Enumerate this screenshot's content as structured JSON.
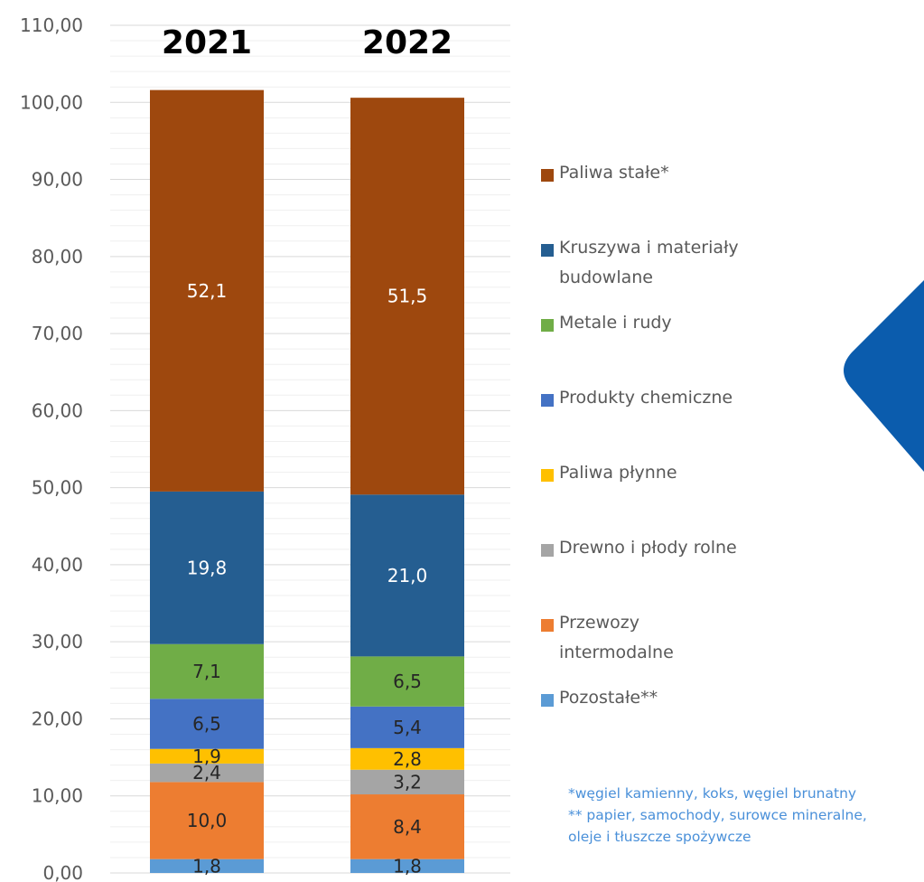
{
  "chart_data": {
    "type": "bar",
    "stacked": true,
    "categories": [
      "2021",
      "2022"
    ],
    "ylim": [
      0,
      110
    ],
    "yticks": [
      "0,00",
      "10,00",
      "20,00",
      "30,00",
      "40,00",
      "50,00",
      "60,00",
      "70,00",
      "80,00",
      "90,00",
      "100,00",
      "110,00"
    ],
    "grid": true,
    "series": [
      {
        "name": "Pozostałe**",
        "values": [
          1.8,
          1.8
        ],
        "labels": [
          "1,8",
          "1,8"
        ],
        "color": "#5b9bd5"
      },
      {
        "name": "Przewozy intermodalne",
        "values": [
          10.0,
          8.4
        ],
        "labels": [
          "10,0",
          "8,4"
        ],
        "color": "#ed7d31"
      },
      {
        "name": "Drewno i płody rolne",
        "values": [
          2.4,
          3.2
        ],
        "labels": [
          "2,4",
          "3,2"
        ],
        "color": "#a5a5a5"
      },
      {
        "name": "Paliwa płynne",
        "values": [
          1.9,
          2.8
        ],
        "labels": [
          "1,9",
          "2,8"
        ],
        "color": "#ffc000"
      },
      {
        "name": "Produkty chemiczne",
        "values": [
          6.5,
          5.4
        ],
        "labels": [
          "6,5",
          "5,4"
        ],
        "color": "#4472c4"
      },
      {
        "name": "Metale i rudy",
        "values": [
          7.1,
          6.5
        ],
        "labels": [
          "7,1",
          "6,5"
        ],
        "color": "#70ad47"
      },
      {
        "name": "Kruszywa i materiały budowlane",
        "values": [
          19.8,
          21.0
        ],
        "labels": [
          "19,8",
          "21,0"
        ],
        "color": "#255e91"
      },
      {
        "name": "Paliwa stałe*",
        "values": [
          52.1,
          51.5
        ],
        "labels": [
          "52,1",
          "51,5"
        ],
        "color": "#9e480e"
      }
    ],
    "legend_position": "right"
  },
  "legend": [
    {
      "label": "Paliwa stałe*",
      "color": "#9e480e"
    },
    {
      "label": "Kruszywa i materiały budowlane",
      "color": "#255e91"
    },
    {
      "label": "Metale i rudy",
      "color": "#70ad47"
    },
    {
      "label": "Produkty chemiczne",
      "color": "#4472c4"
    },
    {
      "label": "Paliwa płynne",
      "color": "#ffc000"
    },
    {
      "label": "Drewno i płody rolne",
      "color": "#a5a5a5"
    },
    {
      "label": "Przewozy intermodalne",
      "color": "#ed7d31"
    },
    {
      "label": "Pozostałe**",
      "color": "#5b9bd5"
    }
  ],
  "footnotes": {
    "line1": "*węgiel kamienny, koks, węgiel brunatny",
    "line2": "** papier, samochody, surowce mineralne, oleje i tłuszcze spożywcze"
  },
  "colors": {
    "decoration": "#0b5cad",
    "footnote": "#4a90d9"
  }
}
